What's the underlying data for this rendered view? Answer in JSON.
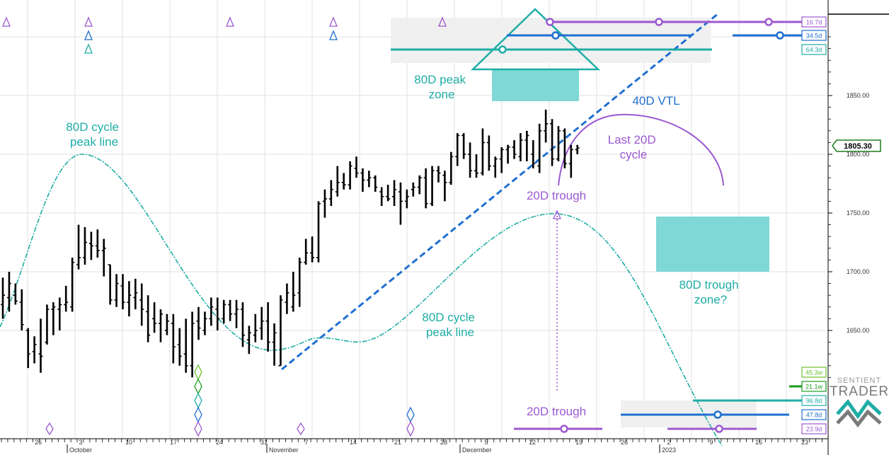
{
  "chart_data": {
    "type": "bar",
    "subtype": "ohlc-price-chart-with-cycle-analysis",
    "y_axis": {
      "ticks": [
        "1850.00",
        "1800.00",
        "1750.00",
        "1700.00",
        "1650.00"
      ],
      "tick_values": [
        1850,
        1800,
        1750,
        1700,
        1650
      ],
      "ylim": [
        1592,
        1920
      ],
      "current_price_label": "1805.30",
      "current_price": 1805.3
    },
    "x_axis": {
      "day_ticks": [
        "26",
        "3",
        "10",
        "17",
        "24",
        "31",
        "7",
        "14",
        "21",
        "28",
        "5",
        "12",
        "19",
        "26",
        "2",
        "9",
        "16",
        "23"
      ],
      "month_labels": [
        "October",
        "November",
        "December",
        "2023"
      ]
    },
    "bars": [
      {
        "i": 0,
        "o": 1672,
        "h": 1695,
        "l": 1660,
        "c": 1680
      },
      {
        "i": 1,
        "o": 1678,
        "h": 1700,
        "l": 1666,
        "c": 1690
      },
      {
        "i": 2,
        "o": 1680,
        "h": 1690,
        "l": 1672,
        "c": 1675
      },
      {
        "i": 3,
        "o": 1674,
        "h": 1685,
        "l": 1650,
        "c": 1655
      },
      {
        "i": 4,
        "o": 1650,
        "h": 1652,
        "l": 1618,
        "c": 1630
      },
      {
        "i": 5,
        "o": 1632,
        "h": 1645,
        "l": 1622,
        "c": 1638
      },
      {
        "i": 6,
        "o": 1630,
        "h": 1660,
        "l": 1614,
        "c": 1628
      },
      {
        "i": 7,
        "o": 1640,
        "h": 1672,
        "l": 1638,
        "c": 1668
      },
      {
        "i": 8,
        "o": 1668,
        "h": 1674,
        "l": 1646,
        "c": 1670
      },
      {
        "i": 9,
        "o": 1668,
        "h": 1678,
        "l": 1650,
        "c": 1672
      },
      {
        "i": 10,
        "o": 1672,
        "h": 1688,
        "l": 1666,
        "c": 1674
      },
      {
        "i": 11,
        "o": 1670,
        "h": 1712,
        "l": 1666,
        "c": 1708
      },
      {
        "i": 12,
        "o": 1706,
        "h": 1740,
        "l": 1702,
        "c": 1712
      },
      {
        "i": 13,
        "o": 1712,
        "h": 1738,
        "l": 1706,
        "c": 1725
      },
      {
        "i": 14,
        "o": 1724,
        "h": 1734,
        "l": 1710,
        "c": 1722
      },
      {
        "i": 15,
        "o": 1722,
        "h": 1736,
        "l": 1712,
        "c": 1718
      },
      {
        "i": 16,
        "o": 1718,
        "h": 1728,
        "l": 1696,
        "c": 1720
      },
      {
        "i": 17,
        "o": 1706,
        "h": 1706,
        "l": 1672,
        "c": 1676
      },
      {
        "i": 18,
        "o": 1676,
        "h": 1698,
        "l": 1670,
        "c": 1690
      },
      {
        "i": 19,
        "o": 1688,
        "h": 1698,
        "l": 1668,
        "c": 1674
      },
      {
        "i": 20,
        "o": 1674,
        "h": 1692,
        "l": 1662,
        "c": 1680
      },
      {
        "i": 21,
        "o": 1678,
        "h": 1694,
        "l": 1668,
        "c": 1682
      },
      {
        "i": 22,
        "o": 1676,
        "h": 1690,
        "l": 1654,
        "c": 1668
      },
      {
        "i": 23,
        "o": 1666,
        "h": 1680,
        "l": 1640,
        "c": 1646
      },
      {
        "i": 24,
        "o": 1660,
        "h": 1674,
        "l": 1648,
        "c": 1656
      },
      {
        "i": 25,
        "o": 1656,
        "h": 1668,
        "l": 1640,
        "c": 1664
      },
      {
        "i": 26,
        "o": 1650,
        "h": 1664,
        "l": 1646,
        "c": 1658
      },
      {
        "i": 27,
        "o": 1656,
        "h": 1664,
        "l": 1622,
        "c": 1636
      },
      {
        "i": 28,
        "o": 1638,
        "h": 1652,
        "l": 1620,
        "c": 1628
      },
      {
        "i": 29,
        "o": 1630,
        "h": 1660,
        "l": 1614,
        "c": 1620
      },
      {
        "i": 30,
        "o": 1620,
        "h": 1666,
        "l": 1610,
        "c": 1656
      },
      {
        "i": 31,
        "o": 1658,
        "h": 1670,
        "l": 1642,
        "c": 1652
      },
      {
        "i": 32,
        "o": 1650,
        "h": 1666,
        "l": 1646,
        "c": 1660
      },
      {
        "i": 33,
        "o": 1660,
        "h": 1678,
        "l": 1654,
        "c": 1670
      },
      {
        "i": 34,
        "o": 1668,
        "h": 1678,
        "l": 1650,
        "c": 1660
      },
      {
        "i": 35,
        "o": 1660,
        "h": 1676,
        "l": 1656,
        "c": 1672
      },
      {
        "i": 36,
        "o": 1672,
        "h": 1676,
        "l": 1658,
        "c": 1664
      },
      {
        "i": 37,
        "o": 1664,
        "h": 1676,
        "l": 1652,
        "c": 1668
      },
      {
        "i": 38,
        "o": 1668,
        "h": 1674,
        "l": 1636,
        "c": 1646
      },
      {
        "i": 39,
        "o": 1642,
        "h": 1654,
        "l": 1630,
        "c": 1648
      },
      {
        "i": 40,
        "o": 1646,
        "h": 1664,
        "l": 1640,
        "c": 1650
      },
      {
        "i": 41,
        "o": 1652,
        "h": 1670,
        "l": 1642,
        "c": 1658
      },
      {
        "i": 42,
        "o": 1658,
        "h": 1674,
        "l": 1632,
        "c": 1640
      },
      {
        "i": 43,
        "o": 1640,
        "h": 1656,
        "l": 1620,
        "c": 1648
      },
      {
        "i": 44,
        "o": 1620,
        "h": 1680,
        "l": 1620,
        "c": 1676
      },
      {
        "i": 45,
        "o": 1674,
        "h": 1690,
        "l": 1664,
        "c": 1682
      },
      {
        "i": 46,
        "o": 1670,
        "h": 1700,
        "l": 1666,
        "c": 1680
      },
      {
        "i": 47,
        "o": 1682,
        "h": 1712,
        "l": 1670,
        "c": 1708
      },
      {
        "i": 48,
        "o": 1708,
        "h": 1728,
        "l": 1706,
        "c": 1716
      },
      {
        "i": 49,
        "o": 1716,
        "h": 1730,
        "l": 1708,
        "c": 1712
      },
      {
        "i": 50,
        "o": 1712,
        "h": 1760,
        "l": 1708,
        "c": 1758
      },
      {
        "i": 51,
        "o": 1760,
        "h": 1770,
        "l": 1746,
        "c": 1762
      },
      {
        "i": 52,
        "o": 1762,
        "h": 1778,
        "l": 1756,
        "c": 1770
      },
      {
        "i": 53,
        "o": 1768,
        "h": 1790,
        "l": 1764,
        "c": 1776
      },
      {
        "i": 54,
        "o": 1776,
        "h": 1784,
        "l": 1770,
        "c": 1774
      },
      {
        "i": 55,
        "o": 1774,
        "h": 1794,
        "l": 1770,
        "c": 1790
      },
      {
        "i": 56,
        "o": 1788,
        "h": 1798,
        "l": 1780,
        "c": 1784
      },
      {
        "i": 57,
        "o": 1784,
        "h": 1788,
        "l": 1768,
        "c": 1778
      },
      {
        "i": 58,
        "o": 1778,
        "h": 1786,
        "l": 1772,
        "c": 1780
      },
      {
        "i": 59,
        "o": 1780,
        "h": 1782,
        "l": 1768,
        "c": 1772
      },
      {
        "i": 60,
        "o": 1768,
        "h": 1772,
        "l": 1756,
        "c": 1764
      },
      {
        "i": 61,
        "o": 1764,
        "h": 1774,
        "l": 1760,
        "c": 1762
      },
      {
        "i": 62,
        "o": 1764,
        "h": 1778,
        "l": 1756,
        "c": 1770
      },
      {
        "i": 63,
        "o": 1768,
        "h": 1776,
        "l": 1740,
        "c": 1760
      },
      {
        "i": 64,
        "o": 1760,
        "h": 1770,
        "l": 1754,
        "c": 1764
      },
      {
        "i": 65,
        "o": 1770,
        "h": 1776,
        "l": 1764,
        "c": 1772
      },
      {
        "i": 66,
        "o": 1772,
        "h": 1782,
        "l": 1766,
        "c": 1780
      },
      {
        "i": 67,
        "o": 1780,
        "h": 1788,
        "l": 1754,
        "c": 1758
      },
      {
        "i": 68,
        "o": 1758,
        "h": 1790,
        "l": 1756,
        "c": 1786
      },
      {
        "i": 69,
        "o": 1786,
        "h": 1790,
        "l": 1776,
        "c": 1784
      },
      {
        "i": 70,
        "o": 1782,
        "h": 1786,
        "l": 1760,
        "c": 1776
      },
      {
        "i": 71,
        "o": 1776,
        "h": 1802,
        "l": 1774,
        "c": 1798
      },
      {
        "i": 72,
        "o": 1798,
        "h": 1818,
        "l": 1790,
        "c": 1816
      },
      {
        "i": 73,
        "o": 1816,
        "h": 1818,
        "l": 1796,
        "c": 1800
      },
      {
        "i": 74,
        "o": 1800,
        "h": 1810,
        "l": 1780,
        "c": 1786
      },
      {
        "i": 75,
        "o": 1786,
        "h": 1800,
        "l": 1780,
        "c": 1784
      },
      {
        "i": 76,
        "o": 1784,
        "h": 1822,
        "l": 1782,
        "c": 1810
      },
      {
        "i": 77,
        "o": 1810,
        "h": 1816,
        "l": 1786,
        "c": 1790
      },
      {
        "i": 78,
        "o": 1790,
        "h": 1798,
        "l": 1780,
        "c": 1796
      },
      {
        "i": 79,
        "o": 1796,
        "h": 1806,
        "l": 1784,
        "c": 1804
      },
      {
        "i": 80,
        "o": 1804,
        "h": 1808,
        "l": 1792,
        "c": 1806
      },
      {
        "i": 81,
        "o": 1806,
        "h": 1812,
        "l": 1796,
        "c": 1800
      },
      {
        "i": 82,
        "o": 1798,
        "h": 1818,
        "l": 1794,
        "c": 1812
      },
      {
        "i": 83,
        "o": 1812,
        "h": 1820,
        "l": 1794,
        "c": 1816
      },
      {
        "i": 84,
        "o": 1800,
        "h": 1812,
        "l": 1788,
        "c": 1792
      },
      {
        "i": 85,
        "o": 1790,
        "h": 1826,
        "l": 1784,
        "c": 1820
      },
      {
        "i": 86,
        "o": 1820,
        "h": 1838,
        "l": 1810,
        "c": 1826
      },
      {
        "i": 87,
        "o": 1826,
        "h": 1830,
        "l": 1790,
        "c": 1796
      },
      {
        "i": 88,
        "o": 1796,
        "h": 1824,
        "l": 1794,
        "c": 1820
      },
      {
        "i": 89,
        "o": 1820,
        "h": 1822,
        "l": 1788,
        "c": 1792
      },
      {
        "i": 90,
        "o": 1792,
        "h": 1808,
        "l": 1780,
        "c": 1804
      },
      {
        "i": 91,
        "o": 1804,
        "h": 1808,
        "l": 1800,
        "c": 1805.3
      }
    ],
    "annotations": [
      "80D cycle\npeak line",
      "80D peak\nzone",
      "40D VTL",
      "Last 20D\ncycle",
      "20D trough",
      "80D cycle\npeak line",
      "80D trough\nzone?",
      "20D trough"
    ],
    "cycle_period_labels": [
      "16.7d",
      "34.5d",
      "64.3d",
      "45.3w",
      "21.1w",
      "96.8d",
      "47.8d",
      "23.9d"
    ],
    "colors": {
      "price_bars": "#000000",
      "cycle_80d": "#1fada6",
      "zone_fill": "#7fd8d6",
      "vtl_40d": "#1f6fd1",
      "cycle_20d": "#9b59d0",
      "label_green": "#6cbf2e",
      "current_price_box": "#1e7b1e"
    }
  },
  "branding": {
    "logo_top": "SENTIENT",
    "logo_bottom": "TRADER"
  }
}
